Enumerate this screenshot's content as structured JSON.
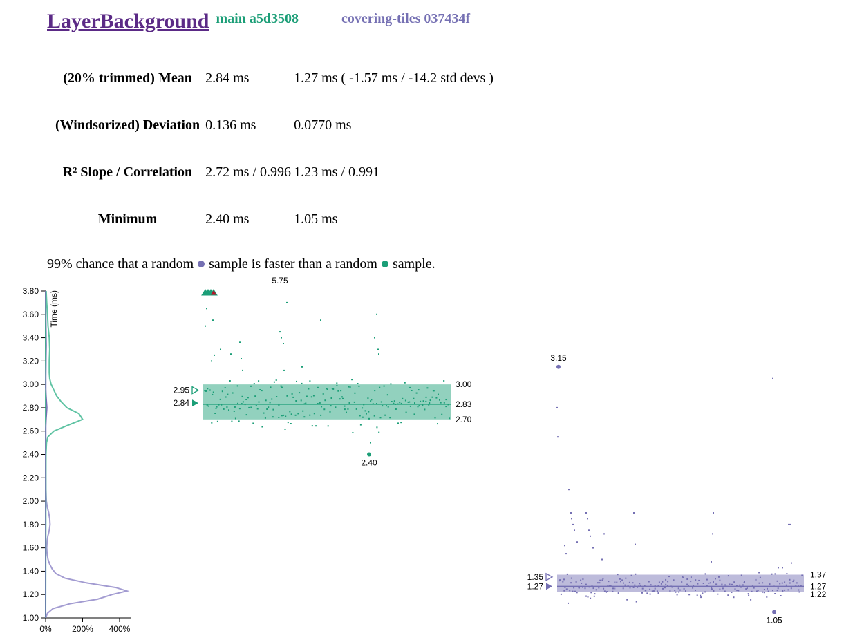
{
  "header": {
    "title": "LayerBackground",
    "main_version": "main a5d3508",
    "covering_version": "covering-tiles 037434f"
  },
  "colors": {
    "main": "#1b9e77",
    "covering": "#7570b3",
    "link": "#5b2a86"
  },
  "stats": [
    {
      "label": "(20% trimmed) Mean",
      "main": "2.84 ms",
      "covering": "1.27 ms ( -1.57 ms / -14.2 std devs )"
    },
    {
      "label": "(Windsorized) Deviation",
      "main": "0.136 ms",
      "covering": "0.0770 ms"
    },
    {
      "label": "R² Slope / Correlation",
      "main": "2.72 ms / 0.996",
      "covering": "1.23 ms / 0.991"
    },
    {
      "label": "Minimum",
      "main": "2.40 ms",
      "covering": "1.05 ms"
    }
  ],
  "summary": {
    "before": "99% chance that a random",
    "middle": "sample is faster than a random",
    "after": "sample."
  },
  "chart_data": {
    "type": "scatter",
    "ylabel": "Time (ms)",
    "y_ticks": [
      "1.00",
      "1.20",
      "1.40",
      "1.60",
      "1.80",
      "2.00",
      "2.20",
      "2.40",
      "2.60",
      "2.80",
      "3.00",
      "3.20",
      "3.40",
      "3.60",
      "3.80"
    ],
    "ylim": [
      1.0,
      3.8
    ],
    "density_ticks": [
      "0%",
      "200%",
      "400%"
    ],
    "density_lim": [
      0,
      4.6
    ],
    "series": [
      {
        "name": "main a5d3508",
        "color": "#1b9e77",
        "label_trimmed_mean": "2.84",
        "label_max_marker": "2.95",
        "label_q_high": "3.00",
        "label_q_mid": "2.83",
        "label_q_low": "2.70",
        "label_min": "2.40",
        "label_max": "5.75",
        "trimmed_mean": 2.84,
        "marker_high": 2.95,
        "q_high": 3.0,
        "q_mid": 2.83,
        "q_low": 2.7,
        "minimum": 2.4,
        "outlier_count": 4,
        "density": [
          [
            1.0,
            0
          ],
          [
            1.8,
            0.01
          ],
          [
            2.0,
            0.01
          ],
          [
            2.2,
            0.01
          ],
          [
            2.4,
            0.02
          ],
          [
            2.5,
            0.05
          ],
          [
            2.55,
            0.12
          ],
          [
            2.6,
            0.45
          ],
          [
            2.65,
            1.2
          ],
          [
            2.7,
            2.0
          ],
          [
            2.75,
            1.8
          ],
          [
            2.8,
            1.15
          ],
          [
            2.85,
            0.85
          ],
          [
            2.9,
            0.6
          ],
          [
            2.95,
            0.45
          ],
          [
            3.0,
            0.3
          ],
          [
            3.05,
            0.22
          ],
          [
            3.1,
            0.2
          ],
          [
            3.2,
            0.2
          ],
          [
            3.3,
            0.22
          ],
          [
            3.4,
            0.2
          ],
          [
            3.5,
            0.13
          ],
          [
            3.6,
            0.1
          ],
          [
            3.7,
            0.06
          ],
          [
            3.8,
            0.03
          ]
        ]
      },
      {
        "name": "covering-tiles 037434f",
        "color": "#7570b3",
        "label_trimmed_mean": "1.27",
        "label_max_marker": "1.35",
        "label_q_high": "1.37",
        "label_q_mid": "1.27",
        "label_q_low": "1.22",
        "label_min": "1.05",
        "label_max": "3.15",
        "trimmed_mean": 1.27,
        "marker_high": 1.35,
        "q_high": 1.37,
        "q_mid": 1.27,
        "q_low": 1.22,
        "minimum": 1.05,
        "density": [
          [
            1.0,
            0
          ],
          [
            1.04,
            0.1
          ],
          [
            1.08,
            0.4
          ],
          [
            1.12,
            1.3
          ],
          [
            1.16,
            2.8
          ],
          [
            1.2,
            3.6
          ],
          [
            1.23,
            4.4
          ],
          [
            1.26,
            3.8
          ],
          [
            1.3,
            2.2
          ],
          [
            1.34,
            1.05
          ],
          [
            1.38,
            0.55
          ],
          [
            1.42,
            0.35
          ],
          [
            1.46,
            0.22
          ],
          [
            1.5,
            0.13
          ],
          [
            1.55,
            0.08
          ],
          [
            1.6,
            0.06
          ],
          [
            1.65,
            0.08
          ],
          [
            1.7,
            0.12
          ],
          [
            1.75,
            0.2
          ],
          [
            1.8,
            0.24
          ],
          [
            1.85,
            0.22
          ],
          [
            1.9,
            0.17
          ],
          [
            1.95,
            0.09
          ],
          [
            2.0,
            0.04
          ],
          [
            2.1,
            0.02
          ],
          [
            2.3,
            0.01
          ],
          [
            2.6,
            0.01
          ],
          [
            2.8,
            0.02
          ],
          [
            3.0,
            0.01
          ],
          [
            3.2,
            0.01
          ],
          [
            3.8,
            0
          ]
        ]
      }
    ]
  }
}
